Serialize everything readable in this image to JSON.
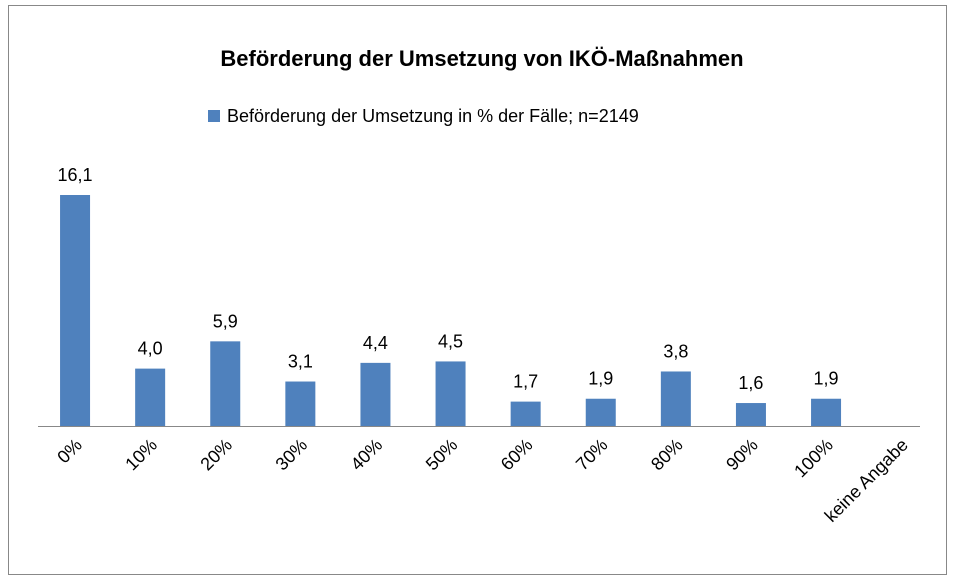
{
  "chart_data": {
    "type": "bar",
    "title": "Beförderung der Umsetzung von IKÖ-Maßnahmen",
    "categories": [
      "0%",
      "10%",
      "20%",
      "30%",
      "40%",
      "50%",
      "60%",
      "70%",
      "80%",
      "90%",
      "100%",
      "keine Angabe"
    ],
    "series": [
      {
        "name": "Beförderung der Umsetzung in % der Fälle; n=2149",
        "color": "#4f81bd",
        "values": [
          16.1,
          4.0,
          5.9,
          3.1,
          4.4,
          4.5,
          1.7,
          1.9,
          3.8,
          1.6,
          1.9,
          null
        ],
        "value_labels": [
          "16,1",
          "4,0",
          "5,9",
          "3,1",
          "4,4",
          "4,5",
          "1,7",
          "1,9",
          "3,8",
          "1,6",
          "1,9",
          null
        ]
      }
    ]
  }
}
